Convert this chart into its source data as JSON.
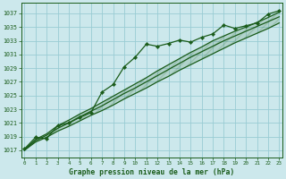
{
  "title": "Graphe pression niveau de la mer (hPa)",
  "background_color": "#cce8ec",
  "grid_color": "#99ccd4",
  "line_color": "#1a5c1a",
  "x_ticks": [
    0,
    1,
    2,
    3,
    4,
    5,
    6,
    7,
    8,
    9,
    10,
    11,
    12,
    13,
    14,
    15,
    16,
    17,
    18,
    19,
    20,
    21,
    22,
    23
  ],
  "y_ticks": [
    1017,
    1019,
    1021,
    1023,
    1025,
    1027,
    1029,
    1031,
    1033,
    1035,
    1037
  ],
  "ylim": [
    1016.0,
    1038.5
  ],
  "xlim": [
    -0.3,
    23.3
  ],
  "jagged": [
    1017.2,
    1018.9,
    1018.7,
    1020.6,
    1021.0,
    1021.8,
    1022.5,
    1025.5,
    1026.6,
    1029.2,
    1030.6,
    1032.5,
    1032.2,
    1032.6,
    1033.1,
    1032.8,
    1033.5,
    1034.0,
    1035.3,
    1034.8,
    1035.2,
    1035.6,
    1036.9,
    1037.4
  ],
  "smooth_upper": [
    1017.1,
    1018.6,
    1019.4,
    1020.6,
    1021.4,
    1022.3,
    1023.1,
    1024.0,
    1024.9,
    1025.8,
    1026.7,
    1027.6,
    1028.6,
    1029.5,
    1030.4,
    1031.3,
    1032.1,
    1033.0,
    1033.7,
    1034.4,
    1035.0,
    1035.7,
    1036.4,
    1037.2
  ],
  "smooth_mid": [
    1017.0,
    1018.4,
    1019.2,
    1020.2,
    1021.0,
    1021.9,
    1022.7,
    1023.5,
    1024.4,
    1025.3,
    1026.1,
    1027.0,
    1027.9,
    1028.8,
    1029.7,
    1030.6,
    1031.4,
    1032.2,
    1033.0,
    1033.7,
    1034.4,
    1035.1,
    1035.8,
    1036.5
  ],
  "smooth_lower": [
    1017.0,
    1018.2,
    1018.9,
    1019.8,
    1020.5,
    1021.3,
    1022.1,
    1022.8,
    1023.6,
    1024.5,
    1025.3,
    1026.1,
    1027.0,
    1027.8,
    1028.7,
    1029.5,
    1030.3,
    1031.1,
    1031.9,
    1032.7,
    1033.4,
    1034.1,
    1034.8,
    1035.6
  ]
}
